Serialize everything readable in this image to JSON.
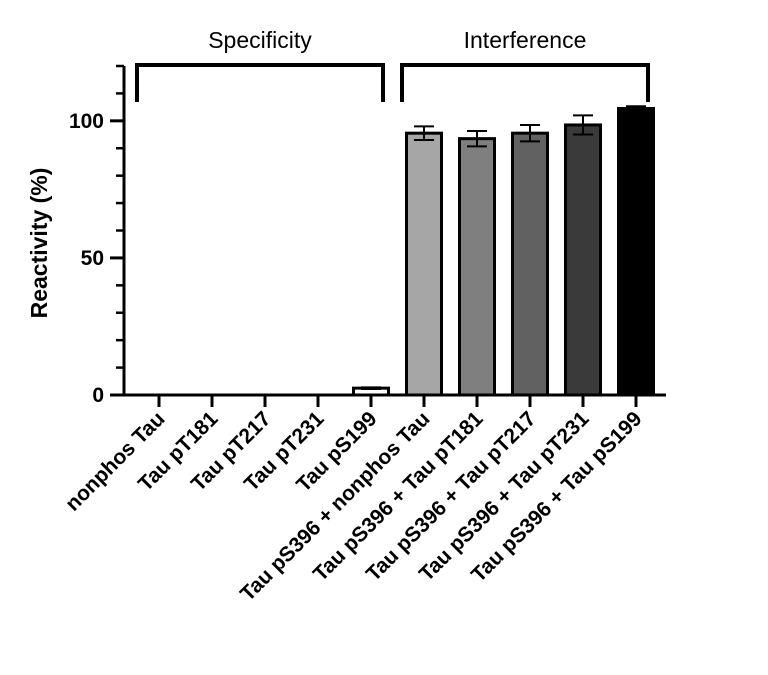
{
  "chart_data": {
    "type": "bar",
    "ylabel": "Reactivity (%)",
    "xlabel": "",
    "ylim": [
      0,
      120
    ],
    "yticks_major": [
      0,
      50,
      100
    ],
    "yticks_minor_step": 10,
    "grid": false,
    "categories": [
      "nonphos Tau",
      "Tau pT181",
      "Tau pT217",
      "Tau pT231",
      "Tau pS199",
      "Tau pS396 + nonphos Tau",
      "Tau pS396 + Tau pT181",
      "Tau pS396 + Tau pT217",
      "Tau pS396 + Tau pT231",
      "Tau pS396 + Tau pS199"
    ],
    "values": [
      0,
      0,
      0,
      0,
      2.5,
      95.5,
      93.5,
      95.5,
      98.5,
      104.5
    ],
    "errors": [
      0,
      0,
      0,
      0,
      0.3,
      2.5,
      2.8,
      3.0,
      3.5,
      0.8
    ],
    "bar_colors": [
      "#ffffff",
      "#ffffff",
      "#ffffff",
      "#ffffff",
      "#ffffff",
      "#a6a6a6",
      "#7f7f7f",
      "#616161",
      "#3a3a3a",
      "#000000"
    ],
    "groups": [
      {
        "label": "Specificity",
        "from": 0,
        "to": 4
      },
      {
        "label": "Interference",
        "from": 5,
        "to": 9
      }
    ]
  }
}
